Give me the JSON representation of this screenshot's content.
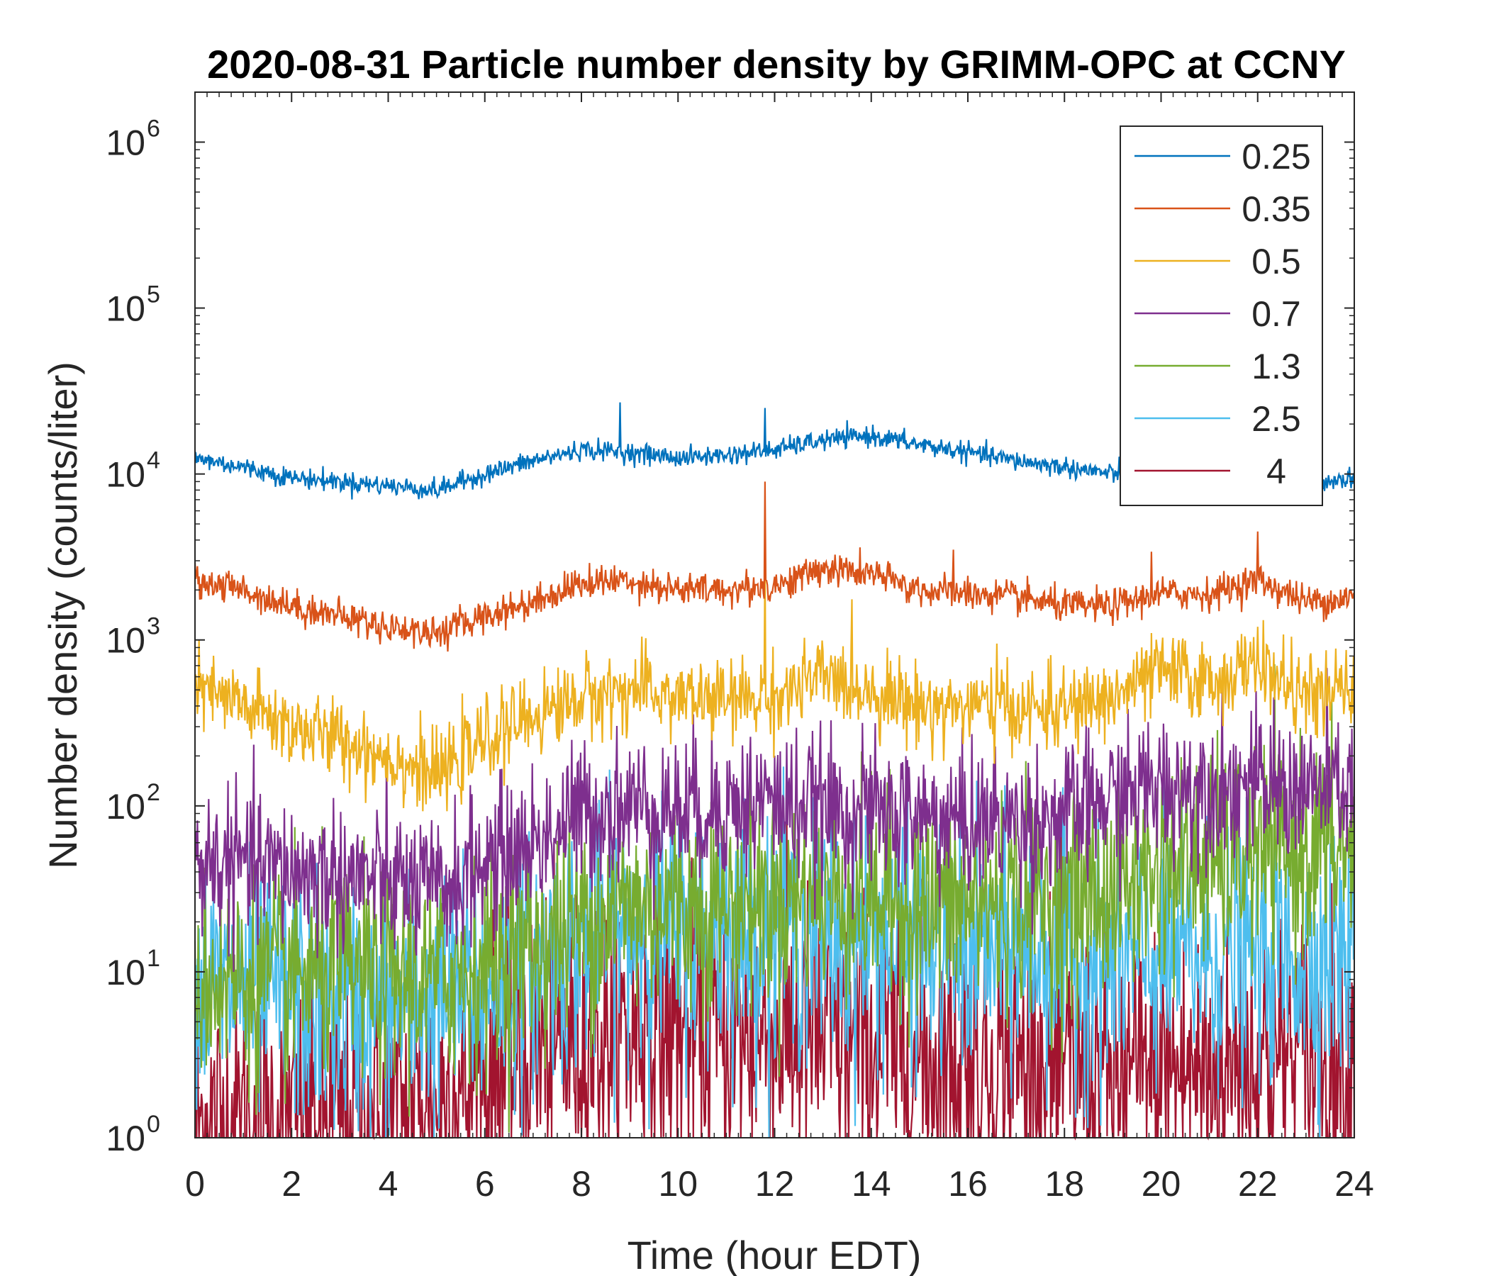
{
  "chart_data": {
    "type": "line",
    "title": "2020-08-31 Particle number density by GRIMM-OPC at CCNY",
    "xlabel": "Time (hour EDT)",
    "ylabel": "Number density (counts/liter)",
    "xlim": [
      0,
      24
    ],
    "ylim": [
      1,
      2000000
    ],
    "yscale": "log",
    "x_ticks": [
      "0",
      "2",
      "4",
      "6",
      "8",
      "10",
      "12",
      "14",
      "16",
      "18",
      "20",
      "22",
      "24"
    ],
    "y_ticks": [
      {
        "base": "10",
        "exp": "0"
      },
      {
        "base": "10",
        "exp": "1"
      },
      {
        "base": "10",
        "exp": "2"
      },
      {
        "base": "10",
        "exp": "3"
      },
      {
        "base": "10",
        "exp": "4"
      },
      {
        "base": "10",
        "exp": "5"
      },
      {
        "base": "10",
        "exp": "6"
      }
    ],
    "legend_position": "top-right",
    "grid": false,
    "x": [
      0,
      1,
      2,
      3,
      4,
      5,
      6,
      7,
      8,
      9,
      10,
      11,
      12,
      13,
      14,
      15,
      16,
      17,
      18,
      19,
      20,
      21,
      22,
      23,
      24
    ],
    "series": [
      {
        "name": "0.25",
        "color": "#0072BD",
        "noise": 0.03,
        "values": [
          12500,
          11000,
          9500,
          9000,
          8500,
          8000,
          10000,
          12000,
          14000,
          13500,
          12500,
          13000,
          14000,
          16000,
          17000,
          15000,
          13500,
          12000,
          11000,
          10000,
          9500,
          9500,
          9000,
          9000,
          9500
        ],
        "spikes": [
          [
            8.8,
            27000
          ],
          [
            11.8,
            25000
          ]
        ]
      },
      {
        "name": "0.35",
        "color": "#D95319",
        "noise": 0.05,
        "values": [
          2300,
          2000,
          1600,
          1400,
          1200,
          1100,
          1400,
          1700,
          2200,
          2300,
          2000,
          2000,
          2100,
          2700,
          2500,
          2000,
          1900,
          1800,
          1600,
          1600,
          1900,
          1900,
          2300,
          1700,
          1800
        ],
        "spikes": [
          [
            11.8,
            9000
          ],
          [
            22.0,
            4500
          ],
          [
            19.8,
            3400
          ],
          [
            15.7,
            3500
          ]
        ]
      },
      {
        "name": "0.5",
        "color": "#EDB120",
        "noise": 0.12,
        "values": [
          500,
          400,
          300,
          250,
          200,
          150,
          250,
          350,
          450,
          500,
          450,
          430,
          450,
          600,
          500,
          400,
          400,
          380,
          380,
          450,
          650,
          550,
          700,
          450,
          500
        ],
        "spikes": [
          [
            11.8,
            3000
          ],
          [
            19.8,
            1100
          ],
          [
            22.0,
            1200
          ],
          [
            16.6,
            950
          ]
        ]
      },
      {
        "name": "0.7",
        "color": "#7E2F8E",
        "noise": 0.22,
        "values": [
          45,
          45,
          40,
          38,
          35,
          30,
          45,
          60,
          90,
          100,
          95,
          100,
          105,
          95,
          90,
          85,
          80,
          80,
          85,
          110,
          130,
          135,
          130,
          125,
          130
        ],
        "spikes": [
          [
            11.8,
            190
          ],
          [
            19.8,
            190
          ]
        ]
      },
      {
        "name": "1.3",
        "color": "#77AC30",
        "noise": 0.32,
        "values": [
          9,
          9,
          9,
          10,
          9,
          9,
          11,
          14,
          20,
          25,
          25,
          25,
          28,
          30,
          28,
          25,
          25,
          27,
          26,
          30,
          42,
          45,
          50,
          55,
          55
        ],
        "spikes": []
      },
      {
        "name": "2.5",
        "color": "#4DBEEE",
        "noise": 0.38,
        "values": [
          8,
          8,
          7,
          6,
          6,
          7,
          8,
          11,
          15,
          18,
          17,
          18,
          18,
          16,
          15,
          14,
          13,
          14,
          12,
          11,
          12,
          12,
          13,
          12,
          13
        ],
        "spikes": []
      },
      {
        "name": "4",
        "color": "#A2142F",
        "noise": 0.45,
        "values": [
          1.2,
          1.2,
          1.2,
          1.3,
          1.3,
          1.6,
          2.2,
          3,
          4,
          4.5,
          4.5,
          4,
          4,
          4,
          3.5,
          3,
          3,
          2.8,
          2.5,
          2.2,
          2.5,
          2.5,
          3,
          3,
          2.8
        ],
        "spikes": []
      }
    ]
  }
}
